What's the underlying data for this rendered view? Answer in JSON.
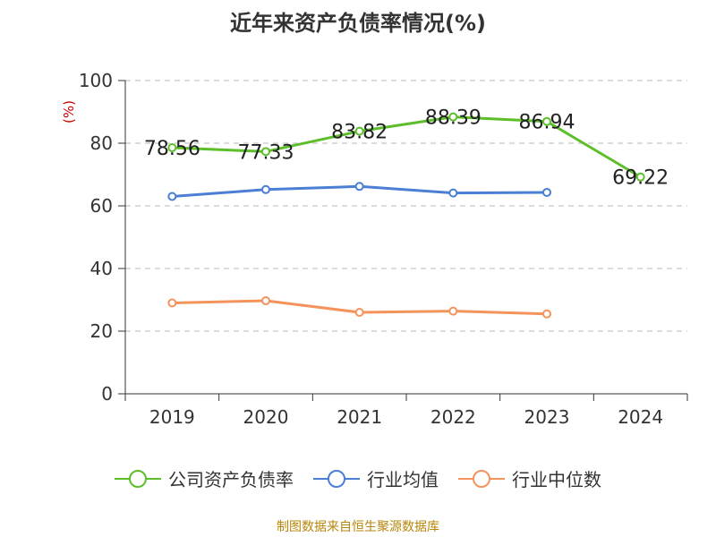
{
  "title": "近年来资产负债率情况(%)",
  "source": "制图数据来自恒生聚源数据库",
  "chart_data": {
    "type": "line",
    "title": "近年来资产负债率情况(%)",
    "ylabel": "(%)",
    "categories": [
      "2019",
      "2020",
      "2021",
      "2022",
      "2023",
      "2024"
    ],
    "ylim": [
      0,
      100
    ],
    "yticks": [
      0,
      20,
      40,
      60,
      80,
      100
    ],
    "grid": true,
    "legend": "bottom",
    "series": [
      {
        "name": "公司资产负债率",
        "color": "#5cbf2a",
        "values": [
          78.56,
          77.33,
          83.82,
          88.39,
          86.94,
          69.22
        ],
        "labels": [
          "78.56",
          "77.33",
          "83.82",
          "88.39",
          "86.94",
          "69.22"
        ]
      },
      {
        "name": "行业均值",
        "color": "#4a7fd4",
        "values": [
          63.0,
          65.2,
          66.2,
          64.1,
          64.3,
          null
        ]
      },
      {
        "name": "行业中位数",
        "color": "#f4935c",
        "values": [
          29.0,
          29.7,
          26.0,
          26.4,
          25.5,
          null
        ]
      }
    ]
  }
}
